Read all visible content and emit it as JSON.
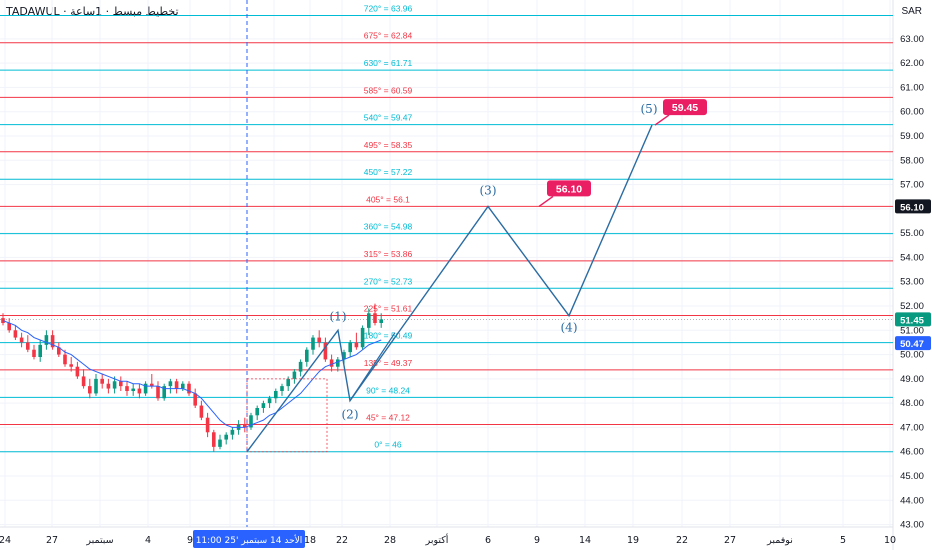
{
  "header": {
    "symbol_title": "TADAWUL · ﺗﺨﻄﻴﻂ ﻣﺒﺴﻂ · 1ساعة",
    "currency": "SAR"
  },
  "chart_data": {
    "type": "line",
    "y_axis": {
      "ticks": [
        43,
        44,
        45,
        46,
        47,
        48,
        49,
        50,
        51,
        52,
        53,
        54,
        55,
        56,
        57,
        58,
        59,
        60,
        61,
        62,
        63
      ],
      "ylim": [
        42.9,
        64.6
      ]
    },
    "x_axis": {
      "ticks": [
        "24",
        "27",
        "سبتمبر",
        "4",
        "9",
        "11",
        "14",
        "18",
        "22",
        "28",
        "أكتوبر",
        "6",
        "9",
        "14",
        "19",
        "22",
        "27",
        "نوفمبر",
        "5",
        "10"
      ],
      "crosshair_label": "الأحد 14 سبتمبر '25  11:00"
    },
    "price_labels": [
      {
        "value": "56.10",
        "color": "#131722"
      },
      {
        "value": "51.45",
        "color": "#089981"
      },
      {
        "value": "50.47",
        "color": "#2962ff"
      }
    ],
    "gann_levels": [
      {
        "label": "0° = 46",
        "value": 46,
        "color": "#00bcd4"
      },
      {
        "label": "45° = 47.12",
        "value": 47.12,
        "color": "#f23645"
      },
      {
        "label": "90° = 48.24",
        "value": 48.24,
        "color": "#00bcd4"
      },
      {
        "label": "135° = 49.37",
        "value": 49.37,
        "color": "#f23645"
      },
      {
        "label": "180° = 50.49",
        "value": 50.49,
        "color": "#00bcd4"
      },
      {
        "label": "225° = 51.61",
        "value": 51.61,
        "color": "#f23645"
      },
      {
        "label": "270° = 52.73",
        "value": 52.73,
        "color": "#00bcd4"
      },
      {
        "label": "315° = 53.86",
        "value": 53.86,
        "color": "#f23645"
      },
      {
        "label": "360° = 54.98",
        "value": 54.98,
        "color": "#00bcd4"
      },
      {
        "label": "405° = 56.1",
        "value": 56.1,
        "color": "#f23645"
      },
      {
        "label": "450° = 57.22",
        "value": 57.22,
        "color": "#00bcd4"
      },
      {
        "label": "495° = 58.35",
        "value": 58.35,
        "color": "#f23645"
      },
      {
        "label": "540° = 59.47",
        "value": 59.47,
        "color": "#00bcd4"
      },
      {
        "label": "585° = 60.59",
        "value": 60.59,
        "color": "#f23645"
      },
      {
        "label": "630° = 61.71",
        "value": 61.71,
        "color": "#00bcd4"
      },
      {
        "label": "675° = 62.84",
        "value": 62.84,
        "color": "#f23645"
      },
      {
        "label": "720° = 63.96",
        "value": 63.96,
        "color": "#00bcd4"
      }
    ],
    "wave_points": [
      {
        "label": "",
        "value": 46.0
      },
      {
        "label": "(1)",
        "value": 51.0
      },
      {
        "label": "(2)",
        "value": 48.1
      },
      {
        "label": "(3)",
        "value": 56.1
      },
      {
        "label": "(4)",
        "value": 51.6
      },
      {
        "label": "(5)",
        "value": 59.45
      }
    ],
    "targets": [
      {
        "label": "56.10",
        "value": 56.1
      },
      {
        "label": "59.45",
        "value": 59.45
      }
    ],
    "candles": [
      {
        "o": 51.5,
        "h": 51.7,
        "l": 51.2,
        "c": 51.3
      },
      {
        "o": 51.3,
        "h": 51.5,
        "l": 50.9,
        "c": 51.0
      },
      {
        "o": 51.0,
        "h": 51.2,
        "l": 50.6,
        "c": 50.7
      },
      {
        "o": 50.7,
        "h": 50.9,
        "l": 50.3,
        "c": 50.5
      },
      {
        "o": 50.5,
        "h": 50.8,
        "l": 50.1,
        "c": 50.2
      },
      {
        "o": 50.2,
        "h": 50.4,
        "l": 49.8,
        "c": 49.9
      },
      {
        "o": 49.9,
        "h": 50.6,
        "l": 49.7,
        "c": 50.4
      },
      {
        "o": 50.4,
        "h": 51.0,
        "l": 50.2,
        "c": 50.8
      },
      {
        "o": 50.8,
        "h": 51.0,
        "l": 50.2,
        "c": 50.3
      },
      {
        "o": 50.3,
        "h": 50.5,
        "l": 49.9,
        "c": 50.0
      },
      {
        "o": 50.0,
        "h": 50.2,
        "l": 49.5,
        "c": 49.6
      },
      {
        "o": 49.6,
        "h": 49.9,
        "l": 49.3,
        "c": 49.5
      },
      {
        "o": 49.5,
        "h": 49.7,
        "l": 49.0,
        "c": 49.1
      },
      {
        "o": 49.1,
        "h": 49.4,
        "l": 48.6,
        "c": 48.7
      },
      {
        "o": 48.7,
        "h": 49.0,
        "l": 48.2,
        "c": 48.4
      },
      {
        "o": 48.4,
        "h": 49.2,
        "l": 48.3,
        "c": 49.0
      },
      {
        "o": 49.0,
        "h": 49.2,
        "l": 48.6,
        "c": 48.8
      },
      {
        "o": 48.8,
        "h": 49.0,
        "l": 48.4,
        "c": 48.6
      },
      {
        "o": 48.6,
        "h": 49.1,
        "l": 48.4,
        "c": 48.9
      },
      {
        "o": 48.9,
        "h": 49.1,
        "l": 48.5,
        "c": 48.7
      },
      {
        "o": 48.7,
        "h": 48.9,
        "l": 48.3,
        "c": 48.5
      },
      {
        "o": 48.5,
        "h": 48.8,
        "l": 48.3,
        "c": 48.6
      },
      {
        "o": 48.6,
        "h": 48.8,
        "l": 48.2,
        "c": 48.4
      },
      {
        "o": 48.4,
        "h": 48.9,
        "l": 48.3,
        "c": 48.8
      },
      {
        "o": 48.8,
        "h": 49.2,
        "l": 48.6,
        "c": 48.7
      },
      {
        "o": 48.7,
        "h": 48.9,
        "l": 48.1,
        "c": 48.2
      },
      {
        "o": 48.2,
        "h": 48.8,
        "l": 48.1,
        "c": 48.7
      },
      {
        "o": 48.7,
        "h": 49.0,
        "l": 48.4,
        "c": 48.9
      },
      {
        "o": 48.9,
        "h": 49.0,
        "l": 48.4,
        "c": 48.6
      },
      {
        "o": 48.6,
        "h": 48.9,
        "l": 48.5,
        "c": 48.8
      },
      {
        "o": 48.8,
        "h": 48.9,
        "l": 48.3,
        "c": 48.4
      },
      {
        "o": 48.4,
        "h": 48.6,
        "l": 47.8,
        "c": 47.9
      },
      {
        "o": 47.9,
        "h": 48.1,
        "l": 47.3,
        "c": 47.4
      },
      {
        "o": 47.4,
        "h": 47.6,
        "l": 46.6,
        "c": 46.8
      },
      {
        "o": 46.8,
        "h": 46.9,
        "l": 46.0,
        "c": 46.2
      },
      {
        "o": 46.2,
        "h": 46.7,
        "l": 46.1,
        "c": 46.5
      },
      {
        "o": 46.5,
        "h": 46.8,
        "l": 46.3,
        "c": 46.7
      },
      {
        "o": 46.7,
        "h": 47.0,
        "l": 46.5,
        "c": 46.9
      },
      {
        "o": 46.9,
        "h": 47.3,
        "l": 46.7,
        "c": 47.1
      },
      {
        "o": 47.1,
        "h": 47.4,
        "l": 46.8,
        "c": 47.0
      },
      {
        "o": 47.0,
        "h": 47.6,
        "l": 46.9,
        "c": 47.5
      },
      {
        "o": 47.5,
        "h": 47.9,
        "l": 47.3,
        "c": 47.8
      },
      {
        "o": 47.8,
        "h": 48.1,
        "l": 47.6,
        "c": 48.0
      },
      {
        "o": 48.0,
        "h": 48.3,
        "l": 47.8,
        "c": 48.2
      },
      {
        "o": 48.2,
        "h": 48.6,
        "l": 48.0,
        "c": 48.5
      },
      {
        "o": 48.5,
        "h": 48.8,
        "l": 48.3,
        "c": 48.7
      },
      {
        "o": 48.7,
        "h": 49.1,
        "l": 48.5,
        "c": 49.0
      },
      {
        "o": 49.0,
        "h": 49.4,
        "l": 48.8,
        "c": 49.3
      },
      {
        "o": 49.3,
        "h": 49.8,
        "l": 49.1,
        "c": 49.7
      },
      {
        "o": 49.7,
        "h": 50.3,
        "l": 49.5,
        "c": 50.2
      },
      {
        "o": 50.2,
        "h": 50.8,
        "l": 50.0,
        "c": 50.7
      },
      {
        "o": 50.7,
        "h": 51.0,
        "l": 50.3,
        "c": 50.5
      },
      {
        "o": 50.5,
        "h": 50.7,
        "l": 49.7,
        "c": 49.8
      },
      {
        "o": 49.8,
        "h": 50.0,
        "l": 49.3,
        "c": 49.5
      },
      {
        "o": 49.5,
        "h": 49.9,
        "l": 49.3,
        "c": 49.8
      },
      {
        "o": 49.8,
        "h": 50.2,
        "l": 49.6,
        "c": 50.1
      },
      {
        "o": 50.1,
        "h": 50.6,
        "l": 49.9,
        "c": 50.5
      },
      {
        "o": 50.5,
        "h": 50.9,
        "l": 50.2,
        "c": 50.3
      },
      {
        "o": 50.3,
        "h": 51.2,
        "l": 50.2,
        "c": 51.1
      },
      {
        "o": 51.1,
        "h": 51.9,
        "l": 50.8,
        "c": 51.7
      },
      {
        "o": 51.7,
        "h": 52.1,
        "l": 51.2,
        "c": 51.3
      },
      {
        "o": 51.3,
        "h": 51.7,
        "l": 51.1,
        "c": 51.45
      }
    ],
    "moving_average": [
      51.4,
      51.3,
      51.2,
      51.0,
      50.9,
      50.7,
      50.6,
      50.5,
      50.4,
      50.3,
      50.1,
      50.0,
      49.8,
      49.6,
      49.4,
      49.3,
      49.2,
      49.1,
      49.0,
      48.9,
      48.9,
      48.8,
      48.8,
      48.7,
      48.7,
      48.7,
      48.6,
      48.6,
      48.6,
      48.6,
      48.5,
      48.4,
      48.2,
      47.9,
      47.6,
      47.3,
      47.1,
      47.0,
      47.0,
      47.0,
      47.1,
      47.2,
      47.3,
      47.5,
      47.6,
      47.8,
      48.0,
      48.2,
      48.4,
      48.7,
      49.0,
      49.3,
      49.5,
      49.6,
      49.7,
      49.8,
      49.9,
      50.0,
      50.2,
      50.4,
      50.5,
      50.6
    ]
  }
}
